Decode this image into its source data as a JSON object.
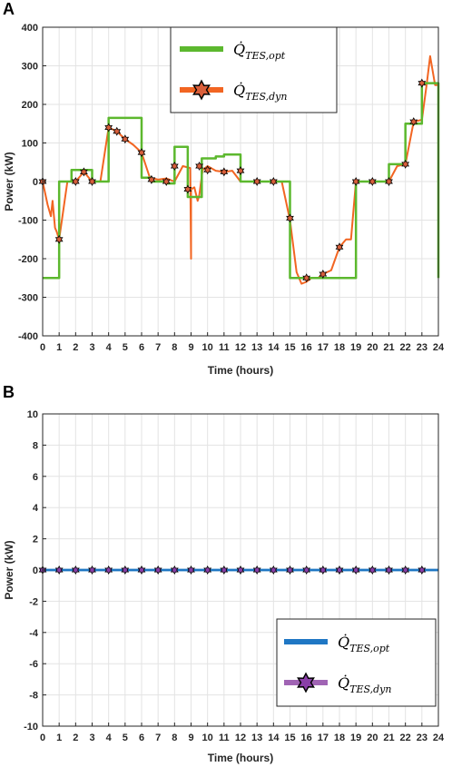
{
  "chart_data": [
    {
      "type": "line",
      "panel_label": "A",
      "xlabel": "Time (hours)",
      "ylabel": "Power (kW)",
      "xlim": [
        0,
        24
      ],
      "ylim": [
        -400,
        400
      ],
      "xticks": [
        "0",
        "1",
        "2",
        "3",
        "4",
        "5",
        "6",
        "7",
        "8",
        "9",
        "10",
        "11",
        "12",
        "13",
        "14",
        "15",
        "16",
        "17",
        "18",
        "19",
        "20",
        "21",
        "22",
        "23",
        "24"
      ],
      "yticks": [
        "400",
        "300",
        "200",
        "100",
        "0",
        "-100",
        "-200",
        "-300",
        "-400"
      ],
      "grid": true,
      "legend_position": "top-center",
      "series": [
        {
          "name_main": "Q̇",
          "name_sub": "TES,opt",
          "color": "#5cb82e",
          "style": "step-line",
          "x": [
            0,
            1,
            1,
            1.75,
            1.75,
            3,
            3,
            4,
            4,
            6,
            6,
            6.6,
            6.6,
            7.6,
            7.6,
            8,
            8,
            8.8,
            8.8,
            9.5,
            9.5,
            9.65,
            9.65,
            10.5,
            10.5,
            11,
            11,
            12,
            12,
            15,
            15,
            19,
            19,
            21,
            21,
            22,
            22,
            23,
            23,
            24,
            24
          ],
          "y": [
            -250,
            -250,
            0,
            0,
            30,
            30,
            0,
            0,
            165,
            165,
            10,
            10,
            0,
            0,
            -5,
            -5,
            90,
            90,
            -40,
            -40,
            -40,
            -40,
            60,
            60,
            65,
            65,
            70,
            70,
            0,
            0,
            -250,
            -250,
            0,
            0,
            45,
            45,
            150,
            150,
            255,
            255,
            -250
          ]
        },
        {
          "name_main": "Q̇",
          "name_sub": "TES,dyn",
          "color": "#f26522",
          "marker": "hexagram",
          "marker_color": "#d95f3b",
          "x": [
            0,
            0.3,
            0.5,
            0.6,
            0.75,
            0.85,
            1,
            1.5,
            2,
            2.5,
            3,
            3.5,
            4,
            4.5,
            5,
            5.5,
            6,
            6.5,
            7,
            7.5,
            8,
            8.5,
            8.95,
            9,
            9,
            9.2,
            9.4,
            9.5,
            9.7,
            10,
            10.5,
            11,
            11.5,
            12,
            12.5,
            13,
            13.5,
            14,
            14.5,
            15,
            15.4,
            15.7,
            16,
            16.3,
            16.7,
            17,
            17.5,
            18,
            18.4,
            18.7,
            19,
            19.5,
            20,
            20.5,
            21,
            21.5,
            22,
            22.5,
            23,
            23.3,
            23.5,
            23.8,
            24
          ],
          "y": [
            0,
            -60,
            -90,
            -50,
            -120,
            -130,
            -150,
            0,
            0,
            25,
            0,
            0,
            140,
            130,
            110,
            95,
            75,
            10,
            5,
            8,
            0,
            40,
            35,
            -200,
            -20,
            -15,
            -50,
            -35,
            30,
            40,
            28,
            25,
            28,
            0,
            0,
            0,
            0,
            0,
            0,
            -100,
            -235,
            -265,
            -260,
            -250,
            -250,
            -240,
            -230,
            -170,
            -150,
            -150,
            0,
            0,
            0,
            0,
            0,
            40,
            45,
            155,
            160,
            255,
            325,
            250,
            250
          ]
        }
      ],
      "markers": {
        "x": [
          0,
          1,
          2,
          2.5,
          3,
          4,
          4.5,
          5,
          6,
          6.6,
          7.5,
          8,
          8.8,
          9.5,
          10,
          11,
          12,
          13,
          14,
          15,
          16,
          17,
          18,
          19,
          20,
          21,
          22,
          22.5,
          23
        ],
        "y": [
          0,
          -150,
          0,
          25,
          0,
          140,
          130,
          110,
          75,
          5,
          0,
          40,
          -20,
          40,
          30,
          25,
          28,
          0,
          0,
          -95,
          -250,
          -240,
          -170,
          0,
          0,
          0,
          45,
          155,
          255
        ]
      }
    },
    {
      "type": "line",
      "panel_label": "B",
      "xlabel": "Time (hours)",
      "ylabel": "Power (kW)",
      "xlim": [
        0,
        24
      ],
      "ylim": [
        -10,
        10
      ],
      "xticks": [
        "0",
        "1",
        "2",
        "3",
        "4",
        "5",
        "6",
        "7",
        "8",
        "9",
        "10",
        "11",
        "12",
        "13",
        "14",
        "15",
        "16",
        "17",
        "18",
        "19",
        "20",
        "21",
        "22",
        "23",
        "24"
      ],
      "yticks": [
        "10",
        "8",
        "6",
        "4",
        "2",
        "0",
        "-2",
        "-4",
        "-6",
        "-8",
        "-10"
      ],
      "grid": true,
      "legend_position": "bottom-right",
      "series": [
        {
          "name_main": "Q̇",
          "name_sub": "TES,opt",
          "color": "#1f77c4",
          "style": "line",
          "x": [
            0,
            24
          ],
          "y": [
            0,
            0
          ]
        },
        {
          "name_main": "Q̇",
          "name_sub": "TES,dyn",
          "color": "#a064b4",
          "marker": "hexagram",
          "marker_color": "#8a3fa8",
          "x": [
            0,
            24
          ],
          "y": [
            0,
            0
          ]
        }
      ],
      "markers": {
        "x": [
          0,
          1,
          2,
          3,
          4,
          5,
          6,
          7,
          8,
          9,
          10,
          11,
          12,
          13,
          14,
          15,
          16,
          17,
          18,
          19,
          20,
          21,
          22,
          23
        ],
        "y": [
          0,
          0,
          0,
          0,
          0,
          0,
          0,
          0,
          0,
          0,
          0,
          0,
          0,
          0,
          0,
          0,
          0,
          0,
          0,
          0,
          0,
          0,
          0,
          0
        ]
      }
    }
  ]
}
